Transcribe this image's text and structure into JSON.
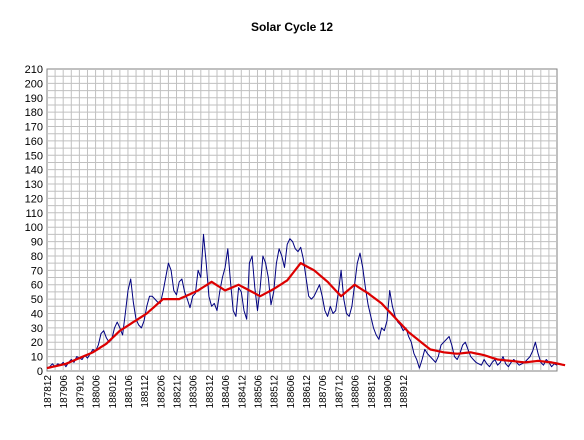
{
  "chart_data": {
    "type": "line",
    "title": "Solar Cycle 12",
    "xlabel": "",
    "ylabel": "",
    "ylim": [
      0,
      210
    ],
    "y_ticks": [
      0,
      10,
      20,
      30,
      40,
      50,
      60,
      70,
      80,
      90,
      100,
      110,
      120,
      130,
      140,
      150,
      160,
      170,
      180,
      190,
      200,
      210
    ],
    "x_tick_labels": [
      "187812",
      "187906",
      "187912",
      "188006",
      "188012",
      "188106",
      "188112",
      "188206",
      "188212",
      "188306",
      "188312",
      "188406",
      "188412",
      "188506",
      "188512",
      "188606",
      "188612",
      "188706",
      "188712",
      "188806",
      "188812",
      "188906",
      "188912"
    ],
    "grid": true,
    "legend": "none",
    "series": [
      {
        "color": "#000080",
        "values": [
          2,
          3,
          5,
          3,
          5,
          4,
          6,
          3,
          6,
          8,
          6,
          10,
          9,
          8,
          11,
          9,
          12,
          15,
          14,
          18,
          26,
          28,
          23,
          20,
          22,
          30,
          34,
          30,
          25,
          40,
          56,
          64,
          48,
          36,
          32,
          30,
          35,
          45,
          52,
          52,
          50,
          48,
          47,
          55,
          65,
          75,
          70,
          56,
          53,
          62,
          64,
          55,
          50,
          44,
          52,
          54,
          70,
          65,
          95,
          75,
          52,
          45,
          47,
          42,
          55,
          65,
          72,
          85,
          62,
          42,
          38,
          58,
          55,
          42,
          36,
          75,
          80,
          58,
          42,
          58,
          80,
          75,
          65,
          46,
          55,
          75,
          85,
          80,
          72,
          88,
          92,
          90,
          85,
          83,
          86,
          78,
          65,
          52,
          50,
          52,
          56,
          60,
          52,
          42,
          38,
          45,
          40,
          42,
          55,
          70,
          50,
          40,
          38,
          45,
          60,
          75,
          82,
          72,
          58,
          46,
          38,
          30,
          25,
          22,
          30,
          28,
          35,
          56,
          45,
          38,
          34,
          32,
          28,
          30,
          24,
          20,
          12,
          8,
          2,
          8,
          15,
          12,
          10,
          8,
          6,
          10,
          18,
          20,
          22,
          24,
          18,
          10,
          8,
          12,
          18,
          20,
          15,
          10,
          8,
          6,
          5,
          4,
          8,
          5,
          3,
          6,
          8,
          4,
          6,
          10,
          5,
          3,
          6,
          8,
          6,
          4,
          5,
          6,
          8,
          10,
          14,
          20,
          12,
          6,
          4,
          8,
          6,
          3,
          5,
          4
        ]
      },
      {
        "color": "#dd0000",
        "values": [
          2.0,
          2.4,
          2.9,
          3.3,
          3.7,
          4.1,
          4.6,
          5.0,
          5.8,
          6.6,
          7.4,
          8.2,
          9.0,
          9.8,
          10.6,
          11.4,
          12.2,
          13.0,
          14.2,
          15.4,
          16.6,
          17.8,
          19.0,
          20.8,
          22.6,
          24.4,
          26.2,
          28.0,
          29.2,
          30.4,
          31.6,
          32.8,
          34.0,
          35.2,
          36.4,
          37.6,
          38.8,
          40.0,
          41.7,
          43.3,
          45.0,
          46.7,
          48.3,
          50.0,
          50.0,
          50.0,
          50.0,
          50.0,
          50.0,
          50.0,
          50.9,
          51.7,
          52.6,
          53.4,
          54.3,
          55.1,
          56.0,
          57.2,
          58.4,
          59.6,
          60.8,
          62.0,
          60.8,
          59.6,
          58.4,
          57.2,
          56.0,
          56.8,
          57.6,
          58.4,
          59.2,
          60.0,
          59.0,
          58.0,
          57.0,
          56.0,
          55.0,
          54.0,
          53.0,
          52.0,
          53.0,
          54.0,
          55.0,
          56.0,
          57.0,
          58.2,
          59.4,
          60.6,
          61.8,
          63.0,
          65.4,
          67.8,
          70.2,
          72.6,
          75.0,
          74.0,
          73.0,
          72.0,
          71.0,
          70.0,
          68.4,
          66.8,
          65.2,
          63.6,
          62.0,
          60.0,
          58.0,
          56.0,
          54.0,
          52.0,
          53.6,
          55.2,
          56.8,
          58.4,
          60.0,
          58.8,
          57.6,
          56.4,
          55.2,
          54.0,
          52.6,
          51.2,
          49.8,
          48.4,
          47.0,
          45.0,
          43.0,
          41.0,
          39.0,
          37.0,
          35.0,
          33.0,
          31.0,
          29.0,
          27.0,
          25.5,
          24.0,
          22.5,
          21.0,
          19.5,
          18.0,
          16.5,
          15.0,
          14.6,
          14.2,
          13.8,
          13.4,
          13.0,
          12.8,
          12.6,
          12.4,
          12.2,
          12.0,
          12.2,
          12.4,
          12.6,
          12.8,
          13.0,
          12.6,
          12.2,
          11.8,
          11.4,
          11.0,
          10.4,
          9.8,
          9.2,
          8.6,
          8.0,
          7.8,
          7.6,
          7.4,
          7.2,
          7.0,
          6.8,
          6.6,
          6.4,
          6.2,
          6.0,
          6.2,
          6.4,
          6.6,
          6.8,
          7.0,
          6.8,
          6.6,
          6.4,
          6.2,
          6.0,
          5.6,
          5.2,
          4.8,
          4.4,
          4.0
        ]
      }
    ]
  }
}
